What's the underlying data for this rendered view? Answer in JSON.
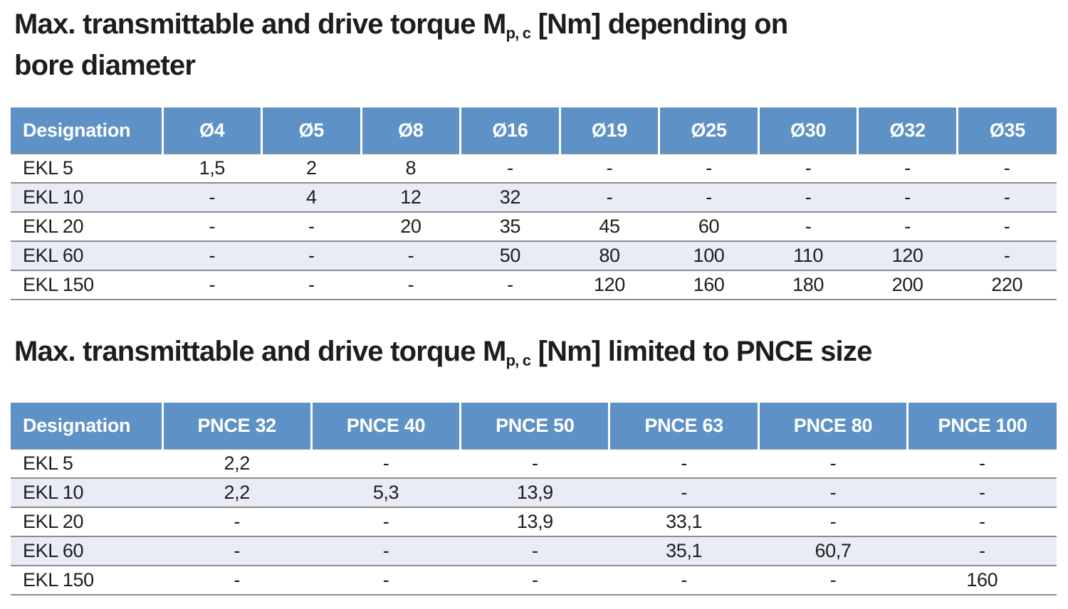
{
  "page": {
    "background": "#ffffff"
  },
  "theme": {
    "header_blue": "#5e92c6",
    "stripe": "#e9ecf6",
    "row_border": "#8c8c8c",
    "text": "#1d1d1b",
    "header_text": "#ffffff"
  },
  "section1": {
    "title": {
      "prefix": "Max. transmittable and drive torque M",
      "subscript": "p, c",
      "suffix": " [Nm] depending on",
      "line2": "bore diameter"
    },
    "table": {
      "columns": [
        "Designation",
        "Ø4",
        "Ø5",
        "Ø8",
        "Ø16",
        "Ø19",
        "Ø25",
        "Ø30",
        "Ø32",
        "Ø35"
      ],
      "rows": [
        {
          "designation": "EKL 5",
          "values": [
            "1,5",
            "2",
            "8",
            "-",
            "-",
            "-",
            "-",
            "-",
            "-"
          ]
        },
        {
          "designation": "EKL 10",
          "values": [
            "-",
            "4",
            "12",
            "32",
            "-",
            "-",
            "-",
            "-",
            "-"
          ]
        },
        {
          "designation": "EKL 20",
          "values": [
            "-",
            "-",
            "20",
            "35",
            "45",
            "60",
            "-",
            "-",
            "-"
          ]
        },
        {
          "designation": "EKL 60",
          "values": [
            "-",
            "-",
            "-",
            "50",
            "80",
            "100",
            "110",
            "120",
            "-"
          ]
        },
        {
          "designation": "EKL 150",
          "values": [
            "-",
            "-",
            "-",
            "-",
            "120",
            "160",
            "180",
            "200",
            "220"
          ]
        }
      ]
    }
  },
  "section2": {
    "title": {
      "prefix": "Max. transmittable and drive torque M",
      "subscript": "p, c",
      "suffix": " [Nm] limited to PNCE size",
      "line2": ""
    },
    "table": {
      "columns": [
        "Designation",
        "PNCE 32",
        "PNCE 40",
        "PNCE 50",
        "PNCE 63",
        "PNCE 80",
        "PNCE 100"
      ],
      "rows": [
        {
          "designation": "EKL 5",
          "values": [
            "2,2",
            "-",
            "-",
            "-",
            "-",
            "-"
          ]
        },
        {
          "designation": "EKL 10",
          "values": [
            "2,2",
            "5,3",
            "13,9",
            "-",
            "-",
            "-"
          ]
        },
        {
          "designation": "EKL 20",
          "values": [
            "-",
            "-",
            "13,9",
            "33,1",
            "-",
            "-"
          ]
        },
        {
          "designation": "EKL 60",
          "values": [
            "-",
            "-",
            "-",
            "35,1",
            "60,7",
            "-"
          ]
        },
        {
          "designation": "EKL 150",
          "values": [
            "-",
            "-",
            "-",
            "-",
            "-",
            "160"
          ]
        }
      ]
    }
  }
}
